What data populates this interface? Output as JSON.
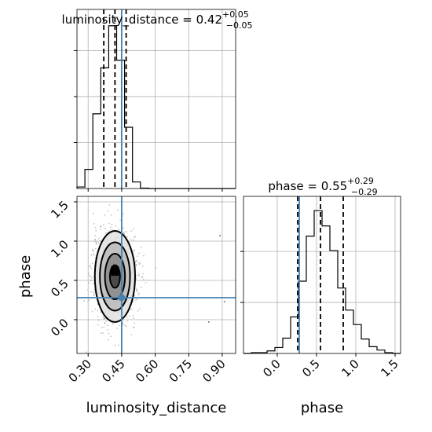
{
  "chart_data": {
    "type": "corner",
    "parameters": [
      "luminosity_distance",
      "phase"
    ],
    "truths": {
      "luminosity_distance": 0.45,
      "phase": 0.28
    },
    "titles": {
      "luminosity_distance": {
        "name": "luminosity_distance",
        "median": "0.42",
        "plus": "+0.05",
        "minus": "−0.05"
      },
      "phase": {
        "name": "phase",
        "median": "0.55",
        "plus": "+0.29",
        "minus": "−0.29"
      }
    },
    "xlabels": {
      "luminosity_distance": "luminosity_distance",
      "phase": "phase"
    },
    "ylabels": {
      "phase": "phase"
    },
    "ranges": {
      "luminosity_distance": [
        0.25,
        0.96
      ],
      "phase": [
        -0.43,
        1.57
      ]
    },
    "ticks": {
      "luminosity_distance": [
        "0.30",
        "0.45",
        "0.60",
        "0.75",
        "0.90"
      ],
      "phase": [
        "0.0",
        "0.5",
        "1.0",
        "1.5"
      ]
    },
    "grid": true,
    "hist_luminosity_distance": {
      "edges": [
        0.25,
        0.2855,
        0.321,
        0.3565,
        0.392,
        0.4275,
        0.463,
        0.4985,
        0.534,
        0.5695,
        0.605,
        0.6405,
        0.676,
        0.7115,
        0.747,
        0.7825,
        0.818,
        0.8535,
        0.889,
        0.9245,
        0.96
      ],
      "counts": [
        4,
        50,
        195,
        315,
        425,
        335,
        160,
        17,
        1,
        0,
        0,
        0,
        0,
        0,
        0,
        0,
        0,
        0,
        0,
        0
      ],
      "quantiles": [
        0.37,
        0.42,
        0.47
      ]
    },
    "hist_phase": {
      "edges": [
        -0.43,
        -0.33,
        -0.23,
        -0.13,
        -0.03,
        0.07,
        0.17,
        0.27,
        0.37,
        0.47,
        0.57,
        0.67,
        0.77,
        0.87,
        0.97,
        1.07,
        1.17,
        1.27,
        1.37,
        1.47,
        1.57
      ],
      "counts": [
        0,
        1,
        1,
        3,
        7,
        18,
        43,
        85,
        138,
        168,
        150,
        121,
        77,
        51,
        34,
        17,
        8,
        4,
        1,
        0
      ],
      "quantiles": [
        0.26,
        0.55,
        0.84
      ]
    },
    "joint": {
      "x_mean": 0.42,
      "x_sd": 0.045,
      "y_mean": 0.55,
      "y_sd": 0.29,
      "contour_levels_sigma": [
        0.5,
        1.0,
        1.5,
        2.0
      ]
    }
  }
}
